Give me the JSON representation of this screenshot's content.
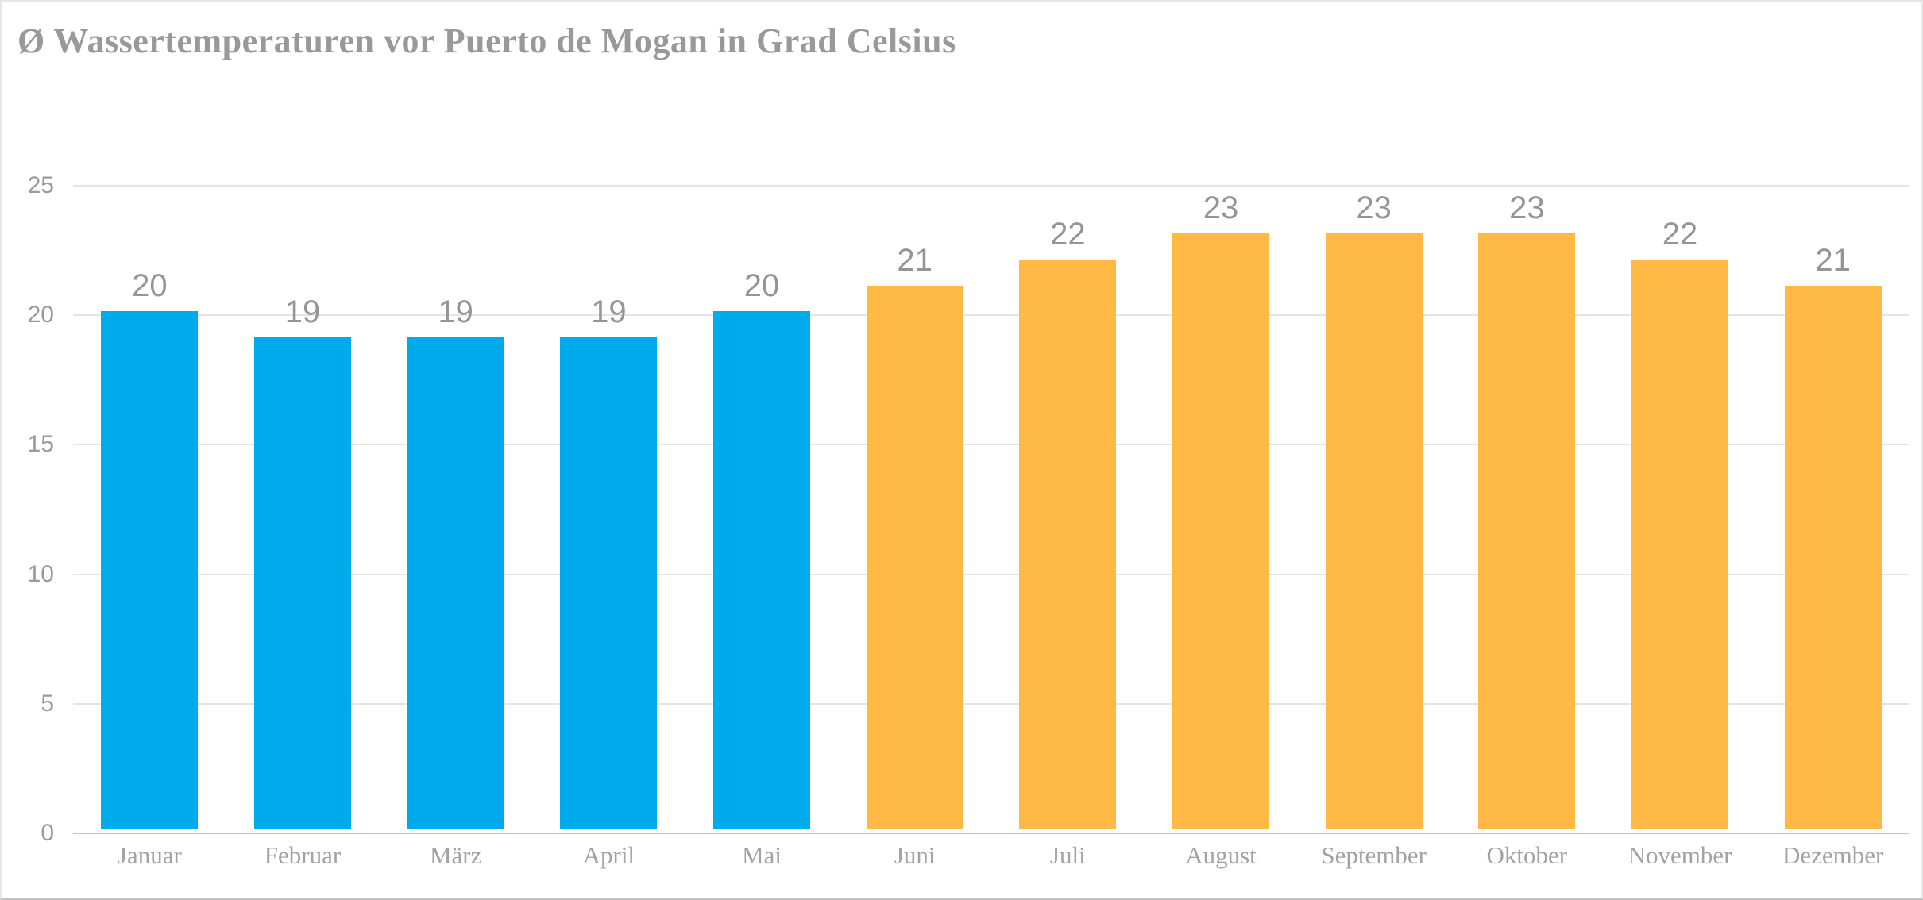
{
  "chart_data": {
    "type": "bar",
    "title": "Ø Wassertemperaturen vor Puerto de Mogan in Grad Celsius",
    "categories": [
      "Januar",
      "Februar",
      "März",
      "April",
      "Mai",
      "Juni",
      "Juli",
      "August",
      "September",
      "Oktober",
      "November",
      "Dezember"
    ],
    "values": [
      20,
      19,
      19,
      19,
      20,
      21,
      22,
      23,
      23,
      23,
      22,
      21
    ],
    "bar_colors": [
      "#00ABEB",
      "#00ABEB",
      "#00ABEB",
      "#00ABEB",
      "#00ABEB",
      "#FFB944",
      "#FFB944",
      "#FFB944",
      "#FFB944",
      "#FFB944",
      "#FFB944",
      "#FFB944"
    ],
    "data_labels": [
      "20",
      "19",
      "19",
      "19",
      "20",
      "21",
      "22",
      "23",
      "23",
      "23",
      "22",
      "21"
    ],
    "y_ticks": [
      0,
      5,
      10,
      15,
      20,
      25
    ],
    "ylim": [
      0,
      25
    ],
    "xlabel": "",
    "ylabel": "",
    "grid": "horizontal",
    "legend_position": "none",
    "data_labels_visible": true,
    "unit": "Grad Celsius"
  },
  "colors": {
    "bar_blue": "#00ABEB",
    "bar_orange": "#FFB944",
    "title_text": "#999999",
    "axis_label_text": "#9A9A9A",
    "data_label_text": "#959595",
    "month_label_text": "#A2A2A2",
    "gridline": "#E4E4E4",
    "axis_line": "#C6C6C6",
    "background": "#FFFFFF",
    "border": "#E6E6E6"
  }
}
